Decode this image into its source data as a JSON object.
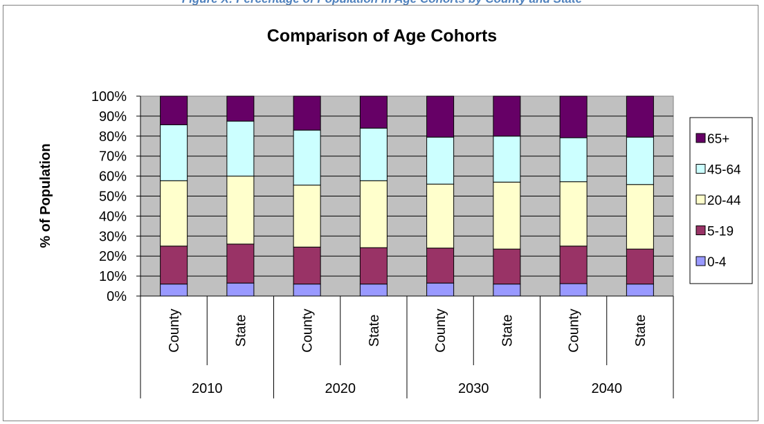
{
  "caption": "Figure X: Percentage of Population in Age Cohorts by County and State",
  "chart_data": {
    "type": "bar",
    "stacked": "percent",
    "title": "Comparison of Age Cohorts",
    "ylabel": "% of Population",
    "xlabel": "",
    "ylim": [
      0,
      100
    ],
    "yticks": [
      "0%",
      "10%",
      "20%",
      "30%",
      "40%",
      "50%",
      "60%",
      "70%",
      "80%",
      "90%",
      "100%"
    ],
    "groups": [
      "2010",
      "2020",
      "2030",
      "2040"
    ],
    "categories": [
      "County",
      "State",
      "County",
      "State",
      "County",
      "State",
      "County",
      "State"
    ],
    "series": [
      {
        "name": "0-4",
        "color": "#9999ff",
        "values": [
          6,
          6.5,
          6,
          6,
          6.5,
          6,
          6.2,
          6
        ]
      },
      {
        "name": "5-19",
        "color": "#993366",
        "values": [
          19,
          19.5,
          18.5,
          18.2,
          17.5,
          17.5,
          18.8,
          17.5
        ]
      },
      {
        "name": "20-44",
        "color": "#ffffcc",
        "values": [
          32.7,
          34,
          31,
          33.5,
          32,
          33.5,
          32.2,
          32.3
        ]
      },
      {
        "name": "45-64",
        "color": "#ccffff",
        "values": [
          28,
          27.5,
          27.5,
          26.3,
          23.5,
          23,
          22,
          23.7
        ]
      },
      {
        "name": "65+",
        "color": "#660066",
        "values": [
          14.3,
          12.5,
          17,
          16,
          20.5,
          20,
          20.8,
          20.5
        ]
      }
    ],
    "legend_position": "right",
    "grid": true,
    "plot_background": "#c0c0c0"
  }
}
